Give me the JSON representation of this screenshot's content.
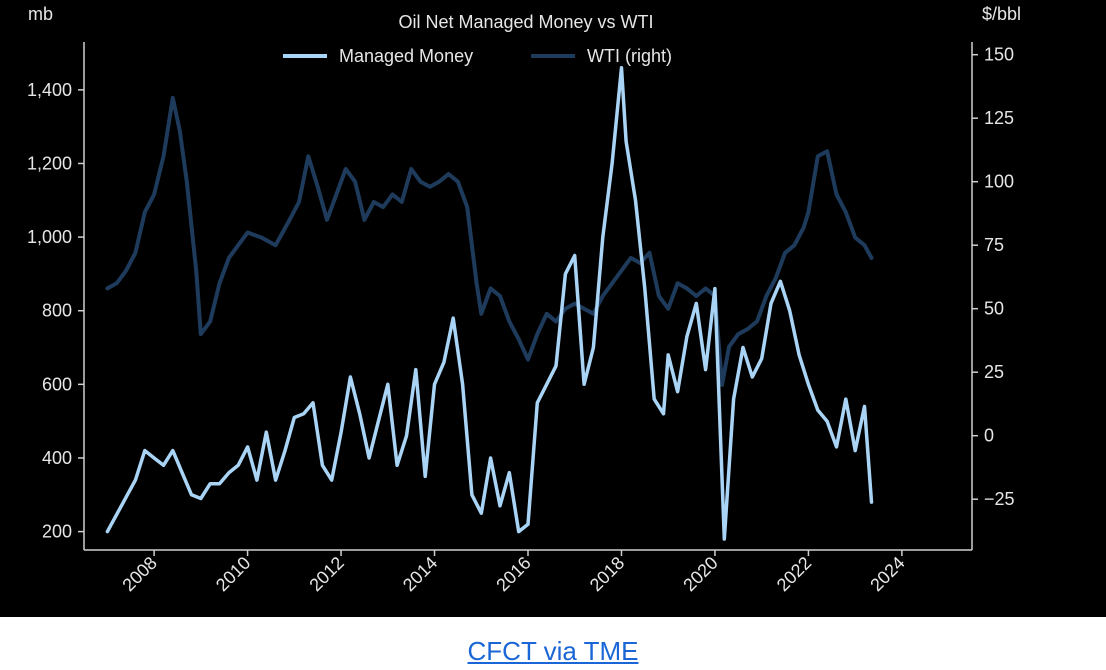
{
  "colors": {
    "background": "#000000",
    "axis": "#cfcfcf",
    "text": "#e6e6e6",
    "managed_money": "#a9d4f5",
    "wti": "#1f3b5c",
    "link": "#1a66d6"
  },
  "caption": {
    "link_text": "CFCT via TME"
  },
  "chart_data": {
    "type": "line",
    "title": "Oil Net Managed Money vs WTI",
    "left_axis": {
      "unit_label": "mb",
      "range": [
        150,
        1530
      ],
      "ticks": [
        200,
        400,
        600,
        800,
        1000,
        1200,
        1400
      ],
      "tick_labels": [
        "200",
        "400",
        "600",
        "800",
        "1,000",
        "1,200",
        "1,400"
      ]
    },
    "right_axis": {
      "unit_label": "$/bbl",
      "range": [
        -45,
        155
      ],
      "ticks": [
        -25,
        0,
        25,
        50,
        75,
        100,
        125,
        150
      ],
      "tick_labels": [
        "−25",
        "0",
        "25",
        "50",
        "75",
        "100",
        "125",
        "150"
      ]
    },
    "x_axis": {
      "range": [
        2006.5,
        2025.5
      ],
      "ticks": [
        2008,
        2010,
        2012,
        2014,
        2016,
        2018,
        2020,
        2022,
        2024
      ],
      "tick_labels": [
        "2008",
        "2010",
        "2012",
        "2014",
        "2016",
        "2018",
        "2020",
        "2022",
        "2024"
      ]
    },
    "legend": {
      "placement": "top-center"
    },
    "grid": false,
    "series": [
      {
        "name": "Managed Money",
        "axis": "left",
        "x": [
          2007.0,
          2007.3,
          2007.6,
          2007.8,
          2008.0,
          2008.2,
          2008.4,
          2008.6,
          2008.8,
          2009.0,
          2009.2,
          2009.4,
          2009.6,
          2009.8,
          2010.0,
          2010.2,
          2010.4,
          2010.6,
          2010.8,
          2011.0,
          2011.2,
          2011.4,
          2011.6,
          2011.8,
          2012.0,
          2012.2,
          2012.4,
          2012.6,
          2012.8,
          2013.0,
          2013.2,
          2013.4,
          2013.6,
          2013.8,
          2014.0,
          2014.2,
          2014.4,
          2014.6,
          2014.8,
          2015.0,
          2015.2,
          2015.4,
          2015.6,
          2015.8,
          2016.0,
          2016.2,
          2016.4,
          2016.6,
          2016.8,
          2017.0,
          2017.2,
          2017.4,
          2017.6,
          2017.8,
          2018.0,
          2018.1,
          2018.3,
          2018.5,
          2018.7,
          2018.9,
          2019.0,
          2019.2,
          2019.4,
          2019.6,
          2019.8,
          2020.0,
          2020.2,
          2020.4,
          2020.6,
          2020.8,
          2021.0,
          2021.2,
          2021.4,
          2021.6,
          2021.8,
          2022.0,
          2022.2,
          2022.4,
          2022.6,
          2022.8,
          2023.0,
          2023.2,
          2023.35
        ],
        "values": [
          200,
          270,
          340,
          420,
          400,
          380,
          420,
          360,
          300,
          290,
          330,
          330,
          360,
          380,
          430,
          340,
          470,
          340,
          420,
          510,
          520,
          550,
          380,
          340,
          470,
          620,
          520,
          400,
          500,
          600,
          380,
          460,
          640,
          350,
          600,
          660,
          780,
          600,
          300,
          250,
          400,
          270,
          360,
          200,
          220,
          550,
          600,
          650,
          900,
          950,
          600,
          700,
          1000,
          1200,
          1460,
          1260,
          1100,
          860,
          560,
          520,
          680,
          580,
          730,
          820,
          640,
          860,
          180,
          560,
          700,
          620,
          670,
          820,
          880,
          800,
          680,
          600,
          530,
          500,
          430,
          560,
          420,
          540,
          280
        ]
      },
      {
        "name": "WTI (right)",
        "axis": "right",
        "x": [
          2007.0,
          2007.2,
          2007.4,
          2007.6,
          2007.8,
          2008.0,
          2008.2,
          2008.4,
          2008.55,
          2008.7,
          2008.9,
          2009.0,
          2009.2,
          2009.4,
          2009.6,
          2009.8,
          2010.0,
          2010.3,
          2010.6,
          2010.9,
          2011.1,
          2011.3,
          2011.5,
          2011.7,
          2011.9,
          2012.1,
          2012.3,
          2012.5,
          2012.7,
          2012.9,
          2013.1,
          2013.3,
          2013.5,
          2013.7,
          2013.9,
          2014.1,
          2014.3,
          2014.5,
          2014.7,
          2014.9,
          2015.0,
          2015.2,
          2015.4,
          2015.6,
          2015.8,
          2016.0,
          2016.2,
          2016.4,
          2016.6,
          2016.8,
          2017.0,
          2017.2,
          2017.4,
          2017.6,
          2017.8,
          2018.0,
          2018.2,
          2018.4,
          2018.6,
          2018.8,
          2019.0,
          2019.2,
          2019.4,
          2019.6,
          2019.8,
          2020.0,
          2020.15,
          2020.3,
          2020.5,
          2020.7,
          2020.9,
          2021.1,
          2021.3,
          2021.5,
          2021.7,
          2021.9,
          2022.0,
          2022.2,
          2022.4,
          2022.6,
          2022.8,
          2023.0,
          2023.2,
          2023.35
        ],
        "values": [
          58,
          60,
          65,
          72,
          88,
          95,
          110,
          133,
          120,
          100,
          65,
          40,
          45,
          60,
          70,
          75,
          80,
          78,
          75,
          85,
          92,
          110,
          98,
          85,
          95,
          105,
          100,
          85,
          92,
          90,
          95,
          92,
          105,
          100,
          98,
          100,
          103,
          100,
          90,
          60,
          48,
          58,
          55,
          45,
          38,
          30,
          40,
          48,
          45,
          50,
          52,
          50,
          48,
          55,
          60,
          65,
          70,
          68,
          72,
          55,
          50,
          60,
          58,
          55,
          58,
          55,
          20,
          35,
          40,
          42,
          45,
          55,
          62,
          72,
          75,
          82,
          88,
          110,
          112,
          95,
          88,
          78,
          75,
          70
        ]
      }
    ]
  }
}
